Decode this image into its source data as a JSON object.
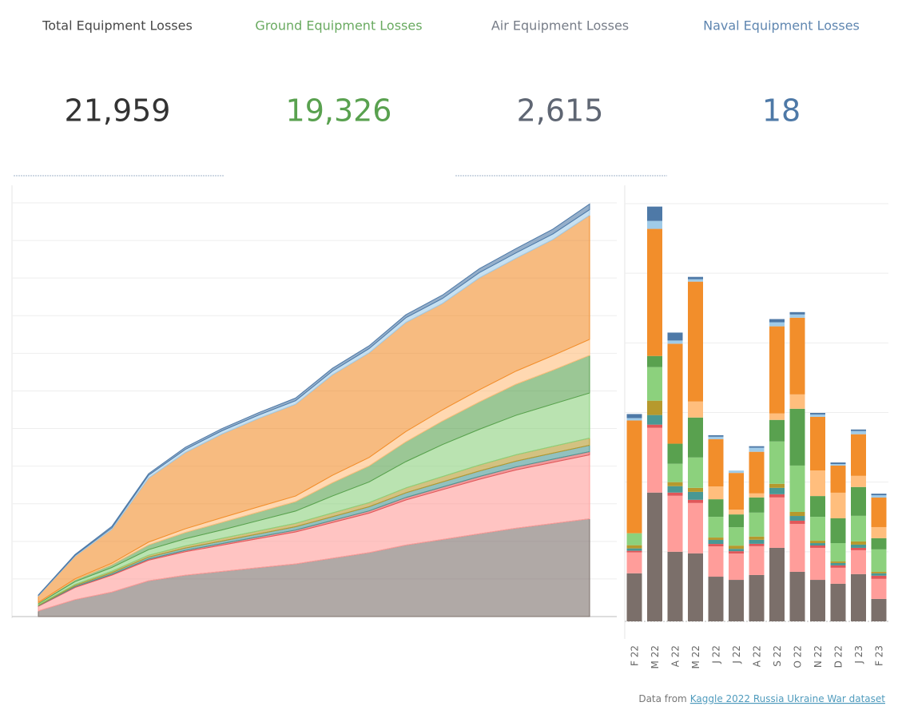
{
  "kpis": [
    {
      "title": "Total Equipment Losses",
      "value": "21,959",
      "color": "#333333"
    },
    {
      "title": "Ground Equipment Losses",
      "value": "19,326",
      "color": "#59a14f"
    },
    {
      "title": "Air Equipment Losses",
      "value": "2,615",
      "color": "#5f6673"
    },
    {
      "title": "Naval Equipment Losses",
      "value": "18",
      "color": "#4e79a7"
    }
  ],
  "chart_data": [
    {
      "type": "area",
      "stacked": true,
      "grid": true,
      "categories": [
        null,
        null,
        null,
        null,
        null,
        null,
        null,
        null,
        null,
        null,
        null,
        null,
        null,
        null,
        null,
        null
      ],
      "ylim": [
        0,
        22000
      ],
      "yticks": [
        0,
        2000,
        4000,
        6000,
        8000,
        10000,
        12000,
        14000,
        16000,
        18000,
        20000,
        22000
      ],
      "series": [
        {
          "color": "#7b6f6a",
          "values": [
            300,
            900,
            1300,
            1900,
            2200,
            2400,
            2600,
            2800,
            3100,
            3400,
            3800,
            4100,
            4400,
            4700,
            4950,
            5200
          ]
        },
        {
          "color": "#ff9d9a",
          "values": [
            250,
            650,
            900,
            1100,
            1250,
            1400,
            1550,
            1700,
            1900,
            2100,
            2400,
            2650,
            2900,
            3100,
            3250,
            3400
          ]
        },
        {
          "color": "#e15759",
          "values": [
            20,
            40,
            50,
            60,
            70,
            80,
            90,
            100,
            110,
            120,
            130,
            140,
            150,
            155,
            165,
            170
          ]
        },
        {
          "color": "#499894",
          "values": [
            30,
            60,
            80,
            100,
            120,
            140,
            160,
            180,
            200,
            220,
            250,
            270,
            290,
            310,
            325,
            340
          ]
        },
        {
          "color": "#b6992d",
          "values": [
            30,
            60,
            80,
            100,
            120,
            140,
            160,
            180,
            200,
            220,
            260,
            290,
            320,
            340,
            360,
            380
          ]
        },
        {
          "color": "#8cd17d",
          "values": [
            60,
            150,
            200,
            300,
            380,
            450,
            550,
            650,
            900,
            1100,
            1400,
            1700,
            1900,
            2100,
            2250,
            2400
          ]
        },
        {
          "color": "#59a14f",
          "values": [
            40,
            100,
            150,
            250,
            330,
            400,
            450,
            500,
            700,
            850,
            1050,
            1250,
            1450,
            1650,
            1800,
            2000
          ]
        },
        {
          "color": "#ffbe7d",
          "values": [
            20,
            50,
            80,
            150,
            200,
            250,
            280,
            300,
            400,
            450,
            550,
            600,
            650,
            700,
            780,
            850
          ]
        },
        {
          "color": "#f28e2b",
          "values": [
            350,
            1200,
            1800,
            3400,
            4050,
            4450,
            4700,
            4880,
            5340,
            5560,
            5800,
            5650,
            5950,
            6000,
            6170,
            6600
          ]
        },
        {
          "color": "#a0cbe8",
          "values": [
            25,
            45,
            80,
            160,
            170,
            175,
            180,
            190,
            200,
            230,
            250,
            270,
            280,
            290,
            295,
            300
          ]
        },
        {
          "color": "#4e79a7",
          "values": [
            25,
            45,
            80,
            80,
            110,
            115,
            130,
            140,
            150,
            150,
            160,
            180,
            210,
            225,
            255,
            300
          ]
        }
      ]
    },
    {
      "type": "bar",
      "stacked": true,
      "grid": true,
      "categories": [
        "F 22",
        "M 22",
        "A 22",
        "M 22",
        "J 22",
        "J 22",
        "A 22",
        "S 22",
        "O 22",
        "N 22",
        "D 22",
        "J 23",
        "F 23"
      ],
      "ylim": [
        0,
        3000
      ],
      "yticks": [
        0,
        500,
        1000,
        1500,
        2000,
        2500,
        3000
      ],
      "series": [
        {
          "color": "#7b6f6a",
          "values": [
            345,
            925,
            500,
            488,
            321,
            298,
            333,
            528,
            356,
            298,
            270,
            339,
            161
          ]
        },
        {
          "color": "#ff9d9a",
          "values": [
            150,
            465,
            402,
            362,
            218,
            189,
            207,
            362,
            344,
            230,
            115,
            172,
            144
          ]
        },
        {
          "color": "#e15759",
          "values": [
            12,
            23,
            23,
            23,
            17,
            17,
            17,
            23,
            23,
            17,
            17,
            17,
            23
          ]
        },
        {
          "color": "#499894",
          "values": [
            17,
            69,
            46,
            57,
            29,
            17,
            29,
            46,
            34,
            17,
            17,
            23,
            17
          ]
        },
        {
          "color": "#b6992d",
          "values": [
            23,
            103,
            29,
            29,
            17,
            23,
            23,
            29,
            29,
            17,
            11,
            23,
            11
          ]
        },
        {
          "color": "#8cd17d",
          "values": [
            86,
            241,
            132,
            218,
            149,
            132,
            172,
            304,
            333,
            172,
            132,
            184,
            161
          ]
        },
        {
          "color": "#59a14f",
          "values": [
            0,
            80,
            144,
            287,
            126,
            92,
            109,
            155,
            408,
            149,
            178,
            207,
            80
          ]
        },
        {
          "color": "#ffbe7d",
          "values": [
            0,
            0,
            0,
            115,
            92,
            34,
            29,
            46,
            103,
            184,
            184,
            80,
            80
          ]
        },
        {
          "color": "#f28e2b",
          "values": [
            810,
            913,
            718,
            861,
            340,
            264,
            299,
            626,
            551,
            385,
            195,
            299,
            212
          ]
        },
        {
          "color": "#a0cbe8",
          "values": [
            17,
            57,
            23,
            17,
            17,
            17,
            29,
            29,
            23,
            17,
            11,
            23,
            17
          ]
        },
        {
          "color": "#4e79a7",
          "values": [
            29,
            103,
            57,
            17,
            11,
            0,
            11,
            23,
            17,
            11,
            11,
            11,
            11
          ]
        }
      ]
    }
  ],
  "footer": {
    "text": "Data from",
    "link": "Kaggle 2022 Russia Ukraine War dataset"
  }
}
